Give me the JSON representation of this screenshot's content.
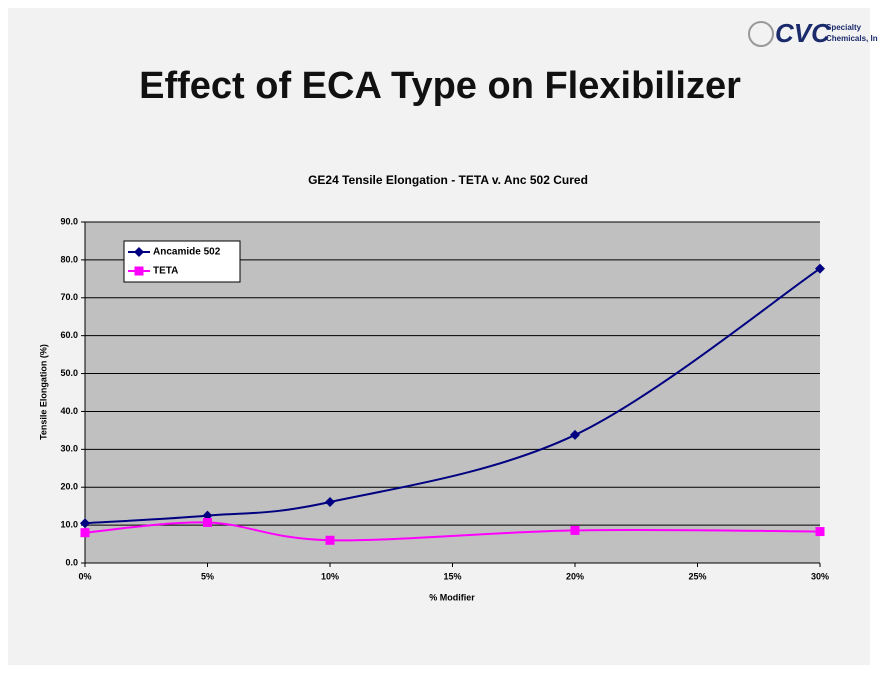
{
  "logo": {
    "mark": "CVC",
    "line1": "Specialty",
    "line2": "Chemicals, In"
  },
  "slide_title": "Effect of ECA Type on Flexibilizer",
  "chart_data": {
    "type": "line",
    "title": "GE24 Tensile Elongation - TETA v. Anc 502 Cured",
    "x_label": "% Modifier",
    "y_label": "Tensile Elongation (%)",
    "x": [
      0,
      5,
      10,
      20,
      30
    ],
    "series": [
      {
        "name": "Ancamide 502",
        "color": "#000080",
        "marker": "diamond",
        "values": [
          10.5,
          12.5,
          16.1,
          33.8,
          77.7
        ]
      },
      {
        "name": "TETA",
        "color": "#ff00ff",
        "marker": "square",
        "values": [
          8.0,
          10.7,
          6.0,
          8.6,
          8.3
        ]
      }
    ],
    "xlim": [
      0,
      30
    ],
    "xticks": [
      {
        "value": 0,
        "label": "0%"
      },
      {
        "value": 5,
        "label": "5%"
      },
      {
        "value": 10,
        "label": "10%"
      },
      {
        "value": 15,
        "label": "15%"
      },
      {
        "value": 20,
        "label": "20%"
      },
      {
        "value": 25,
        "label": "25%"
      },
      {
        "value": 30,
        "label": "30%"
      }
    ],
    "ylim": [
      0,
      90
    ],
    "yticks": [
      {
        "value": 0,
        "label": "0.0"
      },
      {
        "value": 10,
        "label": "10.0"
      },
      {
        "value": 20,
        "label": "20.0"
      },
      {
        "value": 30,
        "label": "30.0"
      },
      {
        "value": 40,
        "label": "40.0"
      },
      {
        "value": 50,
        "label": "50.0"
      },
      {
        "value": 60,
        "label": "60.0"
      },
      {
        "value": 70,
        "label": "70.0"
      },
      {
        "value": 80,
        "label": "80.0"
      },
      {
        "value": 90,
        "label": "90.0"
      }
    ],
    "grid": true,
    "plot_background": "#c0c0c0",
    "legend": "top-left"
  }
}
